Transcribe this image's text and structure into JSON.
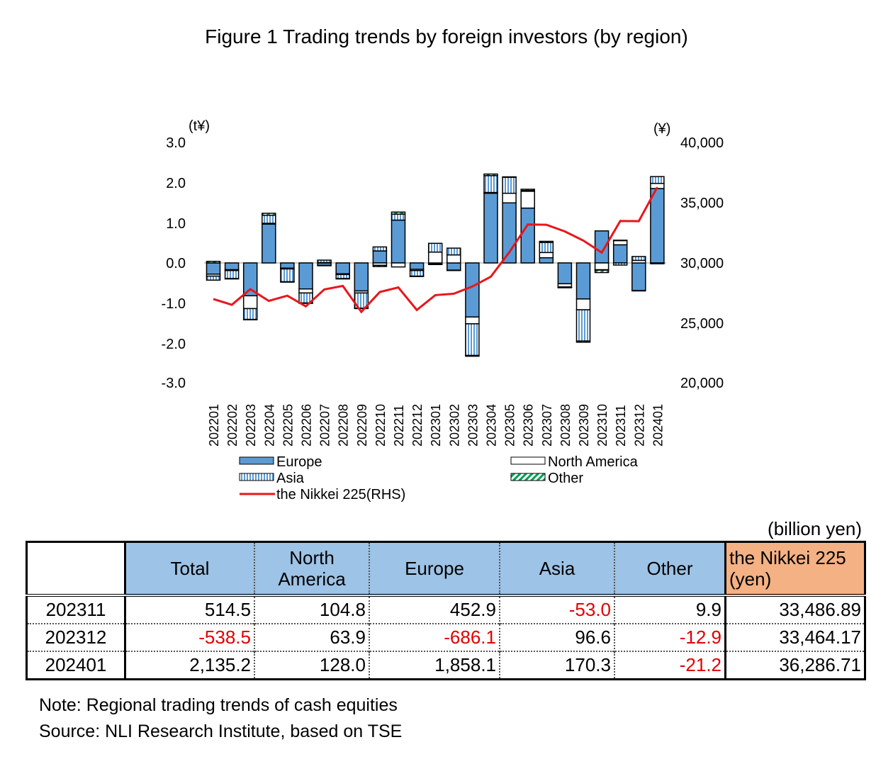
{
  "title": "Figure 1 Trading trends by foreign investors (by region)",
  "chart_data": {
    "type": "bar",
    "stacked": true,
    "categories": [
      "202201",
      "202202",
      "202203",
      "202204",
      "202205",
      "202206",
      "202207",
      "202208",
      "202209",
      "202210",
      "202211",
      "202212",
      "202301",
      "202302",
      "202303",
      "202304",
      "202305",
      "202306",
      "202307",
      "202308",
      "202309",
      "202310",
      "202311",
      "202312",
      "202401"
    ],
    "left_axis": {
      "unit": "(t¥)",
      "ylim": [
        -3.0,
        3.0
      ],
      "ticks": [
        "3.0",
        "2.0",
        "1.0",
        "0.0",
        "-1.0",
        "-2.0",
        "-3.0"
      ]
    },
    "right_axis": {
      "unit": "(¥)",
      "ylim": [
        20000,
        40000
      ],
      "ticks": [
        "40,000",
        "35,000",
        "30,000",
        "25,000",
        "20,000"
      ]
    },
    "grid": false,
    "legend_placement": "bottom",
    "series": [
      {
        "name": "Europe",
        "kind": "bar",
        "color": "#5b9bd5",
        "values": [
          -0.28,
          -0.17,
          -0.82,
          0.97,
          -0.13,
          -0.65,
          -0.06,
          -0.27,
          -0.7,
          0.3,
          1.07,
          -0.16,
          -0.03,
          -0.18,
          -1.35,
          1.74,
          1.5,
          1.37,
          0.13,
          -0.52,
          -0.9,
          0.8,
          0.4529,
          -0.6861,
          1.8581
        ]
      },
      {
        "name": "North America",
        "kind": "bar",
        "color": "#ffffff",
        "values": [
          -0.05,
          -0.02,
          -0.32,
          0.02,
          -0.02,
          -0.1,
          0.01,
          -0.02,
          -0.05,
          -0.06,
          -0.1,
          -0.03,
          0.27,
          0.2,
          -0.17,
          0.02,
          0.24,
          0.42,
          0.13,
          -0.08,
          -0.27,
          -0.17,
          0.1048,
          0.0639,
          0.128
        ]
      },
      {
        "name": "Asia",
        "kind": "bar",
        "color": "#9dc3e6",
        "values": [
          -0.1,
          -0.2,
          -0.27,
          0.2,
          -0.32,
          -0.25,
          0.06,
          -0.1,
          -0.38,
          0.1,
          0.15,
          -0.14,
          0.22,
          0.17,
          -0.79,
          0.42,
          0.4,
          0.02,
          0.25,
          -0.01,
          -0.78,
          -0.01,
          -0.053,
          0.0966,
          0.1703
        ]
      },
      {
        "name": "Other",
        "kind": "bar",
        "color": "#00a050",
        "values": [
          0.04,
          -0.01,
          -0.01,
          0.05,
          -0.01,
          -0.01,
          -0.01,
          -0.01,
          -0.01,
          -0.03,
          0.05,
          -0.01,
          -0.01,
          -0.01,
          -0.02,
          0.04,
          0.01,
          0.03,
          0.03,
          -0.01,
          -0.03,
          -0.06,
          0.0099,
          -0.0129,
          -0.0212
        ]
      },
      {
        "name": "the Nikkei 225(RHS)",
        "kind": "line",
        "axis": "right",
        "color": "#e8161b",
        "values": [
          27002,
          26527,
          27821,
          26848,
          27280,
          26393,
          27802,
          28092,
          25937,
          27587,
          27969,
          26095,
          27327,
          27446,
          28041,
          28856,
          30888,
          33189,
          33172,
          32619,
          31858,
          30859,
          33487,
          33464,
          36287
        ]
      }
    ]
  },
  "table": {
    "unit_label": "(billion yen)",
    "headers": [
      "",
      "Total",
      "North America",
      "Europe",
      "Asia",
      "Other",
      "the Nikkei 225 (yen)"
    ],
    "rows": [
      {
        "month": "202311",
        "cells": [
          "514.5",
          "104.8",
          "452.9",
          "-53.0",
          "9.9",
          "33,486.89"
        ]
      },
      {
        "month": "202312",
        "cells": [
          "-538.5",
          "63.9",
          "-686.1",
          "96.6",
          "-12.9",
          "33,464.17"
        ]
      },
      {
        "month": "202401",
        "cells": [
          "2,135.2",
          "128.0",
          "1,858.1",
          "170.3",
          "-21.2",
          "36,286.71"
        ]
      }
    ]
  },
  "notes": {
    "note": "Note: Regional trading trends of cash equities",
    "source": "Source: NLI Research Institute, based on TSE"
  }
}
